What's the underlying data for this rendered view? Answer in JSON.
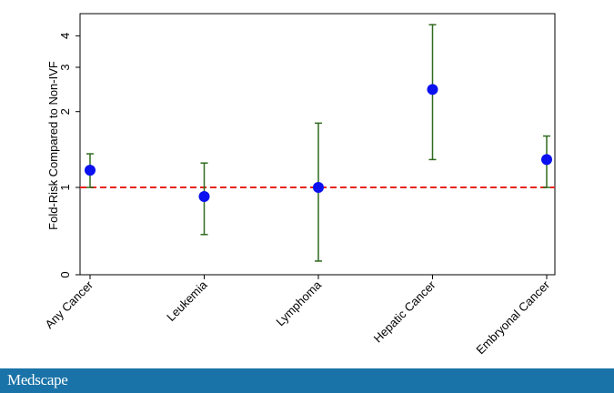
{
  "chart_data": {
    "type": "scatter",
    "ylabel": "Fold-Risk Compared to Non-IVF",
    "xlabel": "",
    "y_scale": "log",
    "ylim": [
      0.45,
      4.9
    ],
    "y_ticks": [
      {
        "value": 0.45,
        "label": "0"
      },
      {
        "value": 1,
        "label": "1"
      },
      {
        "value": 2,
        "label": "2"
      },
      {
        "value": 3,
        "label": "3"
      },
      {
        "value": 4,
        "label": "4"
      }
    ],
    "categories": [
      "Any Cancer",
      "Leukemia",
      "Lymphoma",
      "Hepatic Cancer",
      "Embryonal Cancer"
    ],
    "estimates": [
      1.17,
      0.92,
      1.0,
      2.45,
      1.29
    ],
    "ci_lower": [
      1.0,
      0.65,
      0.51,
      1.29,
      1.0
    ],
    "ci_upper": [
      1.36,
      1.25,
      1.8,
      4.43,
      1.6
    ],
    "reference_line": {
      "value": 1,
      "style": "dashed",
      "color": "#e8241c"
    },
    "colors": {
      "point": "#0a10ef",
      "errorbar": "#2f6a1e",
      "axis": "#000000"
    },
    "grid": false,
    "legend": "none"
  },
  "footer": {
    "brand": "Medscape",
    "color": "#1a73a8"
  }
}
